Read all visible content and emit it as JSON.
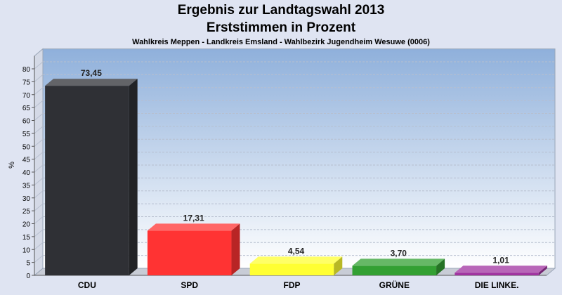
{
  "chart_data": {
    "type": "bar",
    "title": "Ergebnis zur Landtagswahl 2013",
    "subtitle": "Erststimmen in Prozent",
    "subsubtitle": "Wahlkreis Meppen - Landkreis Emsland - Wahlbezirk Jugendheim Wesuwe (0006)",
    "ylabel": "%",
    "xlabel": "",
    "ylim": [
      0,
      85
    ],
    "yticks": [
      0,
      5,
      10,
      15,
      20,
      25,
      30,
      35,
      40,
      45,
      50,
      55,
      60,
      65,
      70,
      75,
      80
    ],
    "grid": true,
    "categories": [
      "CDU",
      "SPD",
      "FDP",
      "GRÜNE",
      "DIE LINKE."
    ],
    "values": [
      73.45,
      17.31,
      4.54,
      3.7,
      1.01
    ],
    "value_labels": [
      "73,45",
      "17,31",
      "4,54",
      "3,70",
      "1,01"
    ],
    "colors": [
      "#2f3035",
      "#ff3333",
      "#ffff33",
      "#33a033",
      "#a033a0"
    ]
  }
}
